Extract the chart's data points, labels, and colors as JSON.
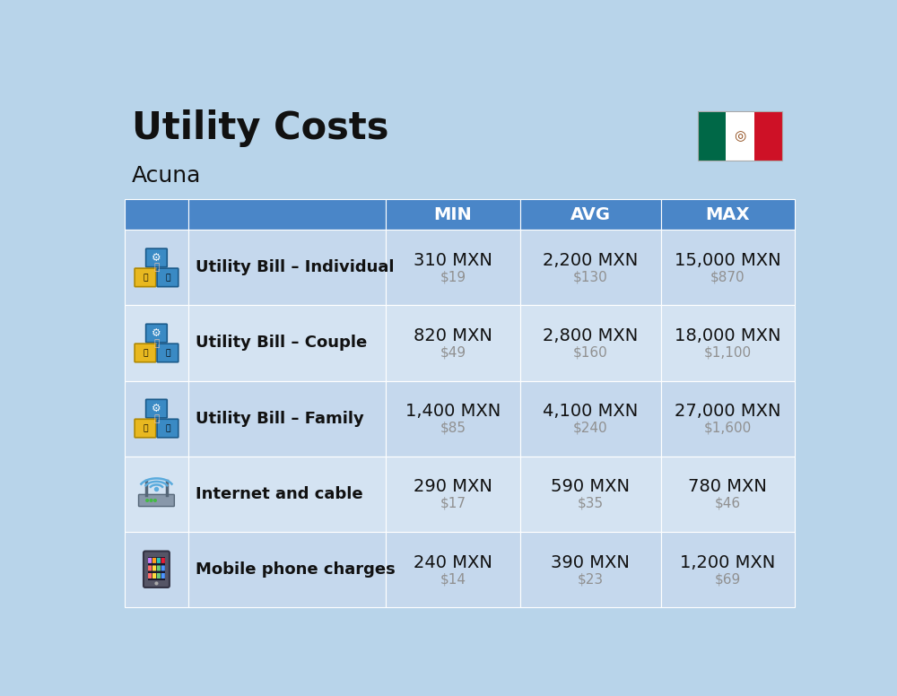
{
  "title": "Utility Costs",
  "subtitle": "Acuna",
  "background_color": "#b8d4ea",
  "header_bg_color": "#4a86c8",
  "header_text_color": "#ffffff",
  "row_bg_odd": "#c5d8ed",
  "row_bg_even": "#d4e3f2",
  "cell_text_color": "#111111",
  "usd_text_color": "#909090",
  "label_text_color": "#111111",
  "divider_color": "#ffffff",
  "columns": [
    "MIN",
    "AVG",
    "MAX"
  ],
  "rows": [
    {
      "label": "Utility Bill – Individual",
      "min_mxn": "310 MXN",
      "min_usd": "$19",
      "avg_mxn": "2,200 MXN",
      "avg_usd": "$130",
      "max_mxn": "15,000 MXN",
      "max_usd": "$870"
    },
    {
      "label": "Utility Bill – Couple",
      "min_mxn": "820 MXN",
      "min_usd": "$49",
      "avg_mxn": "2,800 MXN",
      "avg_usd": "$160",
      "max_mxn": "18,000 MXN",
      "max_usd": "$1,100"
    },
    {
      "label": "Utility Bill – Family",
      "min_mxn": "1,400 MXN",
      "min_usd": "$85",
      "avg_mxn": "4,100 MXN",
      "avg_usd": "$240",
      "max_mxn": "27,000 MXN",
      "max_usd": "$1,600"
    },
    {
      "label": "Internet and cable",
      "min_mxn": "290 MXN",
      "min_usd": "$17",
      "avg_mxn": "590 MXN",
      "avg_usd": "$35",
      "max_mxn": "780 MXN",
      "max_usd": "$46"
    },
    {
      "label": "Mobile phone charges",
      "min_mxn": "240 MXN",
      "min_usd": "$14",
      "avg_mxn": "390 MXN",
      "avg_usd": "$23",
      "max_mxn": "1,200 MXN",
      "max_usd": "$69"
    }
  ],
  "flag_colors": [
    "#006847",
    "#ffffff",
    "#ce1126"
  ],
  "title_fontsize": 30,
  "subtitle_fontsize": 18,
  "header_fontsize": 14,
  "label_fontsize": 13,
  "value_fontsize": 14,
  "usd_fontsize": 11
}
